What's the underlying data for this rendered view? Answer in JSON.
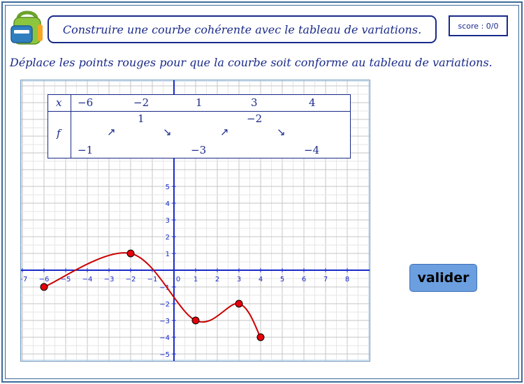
{
  "header": {
    "title": "Construire une courbe cohérente avec le tableau de variations.",
    "score": "score : 0/0"
  },
  "instruction": "Déplace les points rouges pour que la courbe soit conforme au tableau de variations.",
  "variation_table": {
    "row_x_label": "x",
    "row_f_label": "f",
    "x_values": [
      "−6",
      "−2",
      "1",
      "3",
      "4"
    ],
    "f_values": [
      {
        "x": "−6",
        "value": "−1",
        "level": "low"
      },
      {
        "x": "−2",
        "value": "1",
        "level": "high"
      },
      {
        "x": "1",
        "value": "−3",
        "level": "low"
      },
      {
        "x": "3",
        "value": "−2",
        "level": "high"
      },
      {
        "x": "4",
        "value": "−4",
        "level": "low"
      }
    ],
    "arrows": [
      "↗",
      "↘",
      "↗",
      "↘"
    ]
  },
  "validate_button": {
    "label": "valider"
  },
  "colors": {
    "accent": "#1a2a8a",
    "point": "#e8000b",
    "curve": "#cc0000",
    "button": "#6b9fe0"
  },
  "chart_data": {
    "type": "line",
    "x_ticks": [
      -7,
      -6,
      -5,
      -4,
      -3,
      -2,
      -1,
      0,
      1,
      2,
      3,
      4,
      5,
      6,
      7,
      8
    ],
    "y_ticks": [
      -5,
      -4,
      -3,
      -2,
      -1,
      1,
      2,
      3,
      4,
      5
    ],
    "xlim": [
      -7.2,
      8.7
    ],
    "ylim": [
      -5.1,
      11.4
    ],
    "grid": true,
    "points": [
      {
        "x": -6,
        "y": -1
      },
      {
        "x": -2,
        "y": 1
      },
      {
        "x": 1,
        "y": -3
      },
      {
        "x": 3,
        "y": -2
      },
      {
        "x": 4,
        "y": -4
      }
    ]
  }
}
